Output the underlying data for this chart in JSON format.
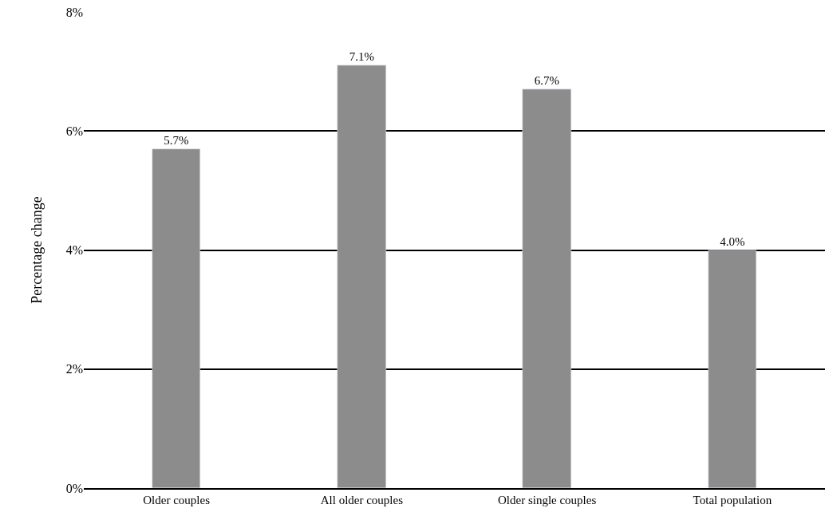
{
  "chart_data": {
    "type": "bar",
    "ylabel": "Percentage change",
    "categories": [
      "Older couples",
      "All older couples",
      "Older single couples",
      "Total population"
    ],
    "values": [
      5.7,
      7.1,
      6.7,
      4.0
    ],
    "value_labels": [
      "5.7%",
      "7.1%",
      "6.7%",
      "4.0%"
    ],
    "color": "#8c8c8c",
    "ylim": [
      0,
      8
    ],
    "yticks": [
      {
        "value": 0,
        "label": "0%"
      },
      {
        "value": 2,
        "label": "2%"
      },
      {
        "value": 4,
        "label": "4%"
      },
      {
        "value": 6,
        "label": "6%"
      },
      {
        "value": 8,
        "label": "8%"
      }
    ],
    "grid": "y",
    "legend": false
  }
}
